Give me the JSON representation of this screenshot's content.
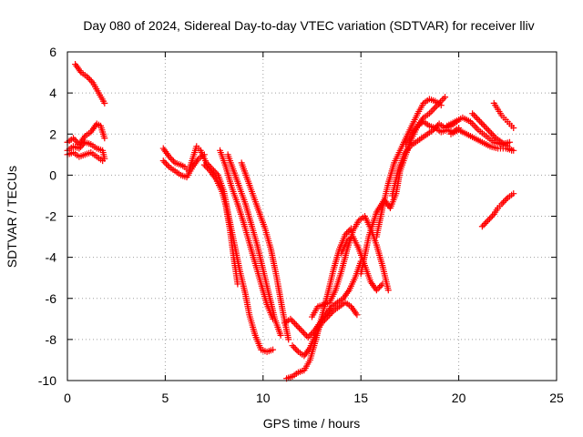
{
  "chart_data": {
    "type": "scatter",
    "title": "Day 080 of 2024, Sidereal Day-to-day VTEC variation (SDTVAR) for receiver lliv",
    "xlabel": "GPS time / hours",
    "ylabel": "SDTVAR / TECUs",
    "xlim": [
      0,
      25
    ],
    "ylim": [
      -10,
      6
    ],
    "xticks": [
      0,
      5,
      10,
      15,
      20,
      25
    ],
    "yticks": [
      -10,
      -8,
      -6,
      -4,
      -2,
      0,
      2,
      4,
      6
    ],
    "grid": true,
    "marker": "+",
    "color": "#ff0000",
    "series": [
      {
        "points": [
          [
            0.4,
            5.4
          ],
          [
            0.7,
            5.0
          ],
          [
            1.0,
            4.8
          ],
          [
            1.3,
            4.5
          ],
          [
            1.6,
            4.0
          ],
          [
            1.9,
            3.5
          ]
        ]
      },
      {
        "points": [
          [
            0.0,
            1.6
          ],
          [
            0.3,
            1.8
          ],
          [
            0.6,
            1.5
          ],
          [
            0.9,
            1.9
          ],
          [
            1.2,
            2.1
          ],
          [
            1.5,
            2.5
          ],
          [
            1.7,
            2.4
          ],
          [
            1.9,
            1.8
          ]
        ]
      },
      {
        "points": [
          [
            0.0,
            1.2
          ],
          [
            0.3,
            1.4
          ],
          [
            0.6,
            1.3
          ],
          [
            0.9,
            1.6
          ],
          [
            1.2,
            1.5
          ],
          [
            1.5,
            1.3
          ],
          [
            1.8,
            1.2
          ],
          [
            1.9,
            0.8
          ]
        ]
      },
      {
        "points": [
          [
            0.0,
            1.0
          ],
          [
            0.3,
            1.1
          ],
          [
            0.6,
            0.9
          ],
          [
            0.9,
            1.0
          ],
          [
            1.2,
            1.1
          ],
          [
            1.5,
            0.9
          ],
          [
            1.8,
            0.7
          ]
        ]
      },
      {
        "points": [
          [
            4.9,
            1.3
          ],
          [
            5.2,
            0.9
          ],
          [
            5.5,
            0.6
          ],
          [
            5.8,
            0.5
          ],
          [
            6.0,
            0.4
          ],
          [
            6.2,
            0.2
          ],
          [
            6.4,
            0.8
          ],
          [
            6.6,
            1.4
          ],
          [
            6.8,
            1.2
          ]
        ]
      },
      {
        "points": [
          [
            4.9,
            0.7
          ],
          [
            5.2,
            0.4
          ],
          [
            5.5,
            0.2
          ],
          [
            5.8,
            0.0
          ],
          [
            6.1,
            -0.1
          ],
          [
            6.4,
            0.4
          ],
          [
            6.7,
            0.8
          ],
          [
            7.0,
            1.0
          ]
        ]
      },
      {
        "points": [
          [
            6.8,
            1.2
          ],
          [
            7.1,
            0.6
          ],
          [
            7.4,
            0.3
          ],
          [
            7.7,
            0.0
          ],
          [
            8.0,
            -0.8
          ],
          [
            8.2,
            -1.8
          ],
          [
            8.5,
            -3.2
          ],
          [
            8.8,
            -4.6
          ],
          [
            9.1,
            -5.8
          ],
          [
            9.3,
            -6.8
          ],
          [
            9.6,
            -7.8
          ],
          [
            9.9,
            -8.5
          ],
          [
            10.2,
            -8.6
          ],
          [
            10.5,
            -8.5
          ]
        ]
      },
      {
        "points": [
          [
            7.0,
            0.5
          ],
          [
            7.3,
            0.2
          ],
          [
            7.6,
            -0.2
          ],
          [
            7.9,
            -0.8
          ],
          [
            8.1,
            -1.5
          ],
          [
            8.3,
            -2.6
          ],
          [
            8.5,
            -4.0
          ],
          [
            8.7,
            -5.3
          ]
        ]
      },
      {
        "points": [
          [
            7.8,
            1.2
          ],
          [
            8.1,
            0.4
          ],
          [
            8.4,
            -0.6
          ],
          [
            8.7,
            -1.4
          ],
          [
            9.0,
            -2.3
          ],
          [
            9.3,
            -3.3
          ],
          [
            9.6,
            -4.3
          ],
          [
            9.9,
            -5.3
          ],
          [
            10.2,
            -6.3
          ],
          [
            10.5,
            -7.0
          ]
        ]
      },
      {
        "points": [
          [
            8.2,
            1.0
          ],
          [
            8.5,
            0.2
          ],
          [
            8.8,
            -0.6
          ],
          [
            9.1,
            -1.4
          ],
          [
            9.4,
            -2.4
          ],
          [
            9.7,
            -3.4
          ],
          [
            10.0,
            -4.6
          ],
          [
            10.3,
            -5.8
          ],
          [
            10.6,
            -7.0
          ],
          [
            10.9,
            -7.8
          ]
        ]
      },
      {
        "points": [
          [
            8.9,
            0.6
          ],
          [
            9.2,
            -0.2
          ],
          [
            9.5,
            -1.0
          ],
          [
            9.8,
            -1.8
          ],
          [
            10.1,
            -2.6
          ],
          [
            10.4,
            -3.6
          ],
          [
            10.7,
            -5.0
          ],
          [
            11.0,
            -6.6
          ],
          [
            11.3,
            -8.0
          ]
        ]
      },
      {
        "points": [
          [
            11.2,
            -9.9
          ],
          [
            11.5,
            -9.8
          ],
          [
            11.8,
            -9.6
          ],
          [
            12.1,
            -9.5
          ],
          [
            12.4,
            -9.0
          ],
          [
            12.7,
            -8.0
          ],
          [
            13.0,
            -6.9
          ],
          [
            13.3,
            -5.8
          ],
          [
            13.6,
            -4.6
          ],
          [
            13.9,
            -3.6
          ],
          [
            14.2,
            -2.9
          ],
          [
            14.5,
            -2.6
          ]
        ]
      },
      {
        "points": [
          [
            11.1,
            -7.2
          ],
          [
            11.4,
            -7.0
          ],
          [
            11.7,
            -7.3
          ],
          [
            12.0,
            -7.6
          ],
          [
            12.3,
            -7.9
          ],
          [
            12.6,
            -7.6
          ],
          [
            12.9,
            -7.2
          ],
          [
            13.2,
            -6.8
          ],
          [
            13.5,
            -6.4
          ],
          [
            13.8,
            -6.2
          ],
          [
            14.1,
            -6.0
          ],
          [
            14.4,
            -5.6
          ],
          [
            14.7,
            -5.0
          ],
          [
            15.0,
            -4.2
          ]
        ]
      },
      {
        "points": [
          [
            11.5,
            -8.3
          ],
          [
            11.8,
            -8.6
          ],
          [
            12.1,
            -8.8
          ],
          [
            12.4,
            -8.4
          ],
          [
            12.7,
            -7.7
          ],
          [
            13.0,
            -7.2
          ],
          [
            13.3,
            -6.9
          ],
          [
            13.6,
            -6.6
          ],
          [
            13.9,
            -6.4
          ],
          [
            14.2,
            -6.2
          ],
          [
            14.5,
            -6.4
          ],
          [
            14.8,
            -6.8
          ]
        ]
      },
      {
        "points": [
          [
            12.5,
            -6.9
          ],
          [
            12.8,
            -6.4
          ],
          [
            13.1,
            -6.3
          ],
          [
            13.4,
            -6.2
          ],
          [
            13.7,
            -5.6
          ],
          [
            14.0,
            -4.7
          ],
          [
            14.3,
            -3.6
          ],
          [
            14.6,
            -2.7
          ],
          [
            14.9,
            -2.2
          ],
          [
            15.2,
            -2.0
          ],
          [
            15.5,
            -2.6
          ],
          [
            15.8,
            -3.4
          ],
          [
            16.1,
            -4.4
          ],
          [
            16.4,
            -5.6
          ]
        ]
      },
      {
        "points": [
          [
            14.0,
            -3.8
          ],
          [
            14.3,
            -3.2
          ],
          [
            14.6,
            -3.0
          ],
          [
            14.9,
            -3.6
          ],
          [
            15.2,
            -4.4
          ],
          [
            15.5,
            -5.2
          ],
          [
            15.8,
            -5.6
          ],
          [
            16.1,
            -5.3
          ]
        ]
      },
      {
        "points": [
          [
            15.0,
            -4.8
          ],
          [
            15.4,
            -3.0
          ],
          [
            15.8,
            -1.8
          ],
          [
            16.2,
            -1.2
          ],
          [
            16.5,
            -1.6
          ],
          [
            16.8,
            -0.9
          ],
          [
            17.0,
            0.2
          ],
          [
            17.3,
            1.0
          ],
          [
            17.6,
            1.8
          ],
          [
            17.9,
            2.4
          ],
          [
            18.2,
            2.8
          ],
          [
            18.5,
            3.0
          ],
          [
            18.9,
            3.4
          ],
          [
            19.3,
            3.8
          ]
        ]
      },
      {
        "points": [
          [
            15.8,
            -3.0
          ],
          [
            16.1,
            -1.6
          ],
          [
            16.4,
            -0.4
          ],
          [
            16.7,
            0.6
          ],
          [
            17.0,
            1.2
          ],
          [
            17.3,
            1.8
          ],
          [
            17.6,
            2.4
          ],
          [
            17.9,
            3.0
          ],
          [
            18.2,
            3.5
          ],
          [
            18.5,
            3.7
          ],
          [
            18.8,
            3.6
          ],
          [
            19.1,
            3.4
          ]
        ]
      },
      {
        "points": [
          [
            16.6,
            -1.0
          ],
          [
            16.9,
            0.2
          ],
          [
            17.2,
            1.0
          ],
          [
            17.5,
            1.4
          ],
          [
            17.8,
            1.6
          ],
          [
            18.1,
            1.8
          ],
          [
            18.4,
            2.0
          ],
          [
            18.7,
            2.2
          ],
          [
            19.0,
            2.5
          ],
          [
            19.3,
            2.3
          ],
          [
            19.6,
            2.4
          ],
          [
            19.9,
            2.6
          ]
        ]
      },
      {
        "points": [
          [
            17.3,
            1.5
          ],
          [
            17.6,
            2.0
          ],
          [
            17.9,
            2.4
          ],
          [
            18.2,
            2.6
          ],
          [
            18.5,
            2.4
          ],
          [
            18.8,
            2.3
          ],
          [
            19.1,
            2.1
          ],
          [
            19.4,
            2.2
          ],
          [
            19.7,
            2.1
          ],
          [
            20.0,
            2.3
          ]
        ]
      },
      {
        "points": [
          [
            19.4,
            2.4
          ],
          [
            19.8,
            2.6
          ],
          [
            20.2,
            2.8
          ],
          [
            20.6,
            2.6
          ],
          [
            21.0,
            2.2
          ],
          [
            21.4,
            1.9
          ],
          [
            21.8,
            1.6
          ],
          [
            22.2,
            1.5
          ],
          [
            22.6,
            1.6
          ]
        ]
      },
      {
        "points": [
          [
            19.6,
            2.0
          ],
          [
            20.0,
            2.2
          ],
          [
            20.4,
            2.0
          ],
          [
            20.8,
            1.8
          ],
          [
            21.2,
            1.6
          ],
          [
            21.6,
            1.4
          ],
          [
            22.0,
            1.3
          ],
          [
            22.4,
            1.3
          ],
          [
            22.8,
            1.2
          ]
        ]
      },
      {
        "points": [
          [
            20.7,
            3.0
          ],
          [
            21.0,
            2.7
          ],
          [
            21.3,
            2.4
          ],
          [
            21.6,
            2.1
          ],
          [
            21.9,
            1.8
          ],
          [
            22.2,
            1.6
          ],
          [
            22.5,
            1.4
          ],
          [
            22.7,
            1.2
          ]
        ]
      },
      {
        "points": [
          [
            21.8,
            3.5
          ],
          [
            22.0,
            3.2
          ],
          [
            22.2,
            2.9
          ],
          [
            22.4,
            2.7
          ],
          [
            22.6,
            2.5
          ],
          [
            22.8,
            2.3
          ]
        ]
      },
      {
        "points": [
          [
            21.2,
            -2.5
          ],
          [
            21.5,
            -2.2
          ],
          [
            21.8,
            -1.9
          ],
          [
            22.0,
            -1.6
          ],
          [
            22.2,
            -1.4
          ],
          [
            22.5,
            -1.1
          ],
          [
            22.8,
            -0.9
          ]
        ]
      }
    ]
  }
}
